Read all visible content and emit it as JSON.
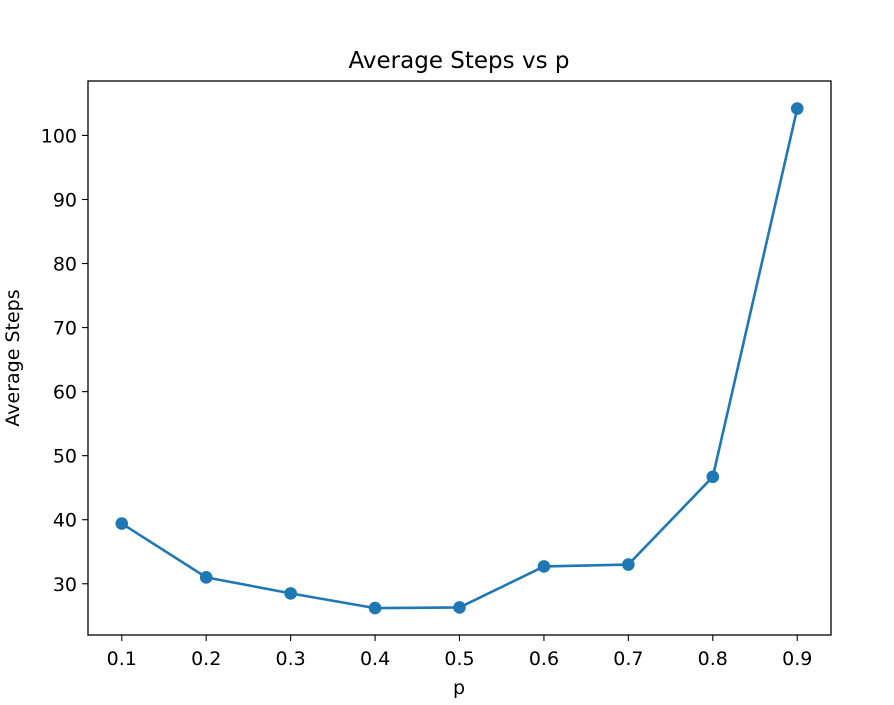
{
  "chart_data": {
    "type": "line",
    "title": "Average Steps vs p",
    "xlabel": "p",
    "ylabel": "Average Steps",
    "xlim": [
      0.06,
      0.94
    ],
    "ylim": [
      22.0,
      108.5
    ],
    "xticks": [
      0.1,
      0.2,
      0.3,
      0.4,
      0.5,
      0.6,
      0.7,
      0.8,
      0.9
    ],
    "xtick_labels": [
      "0.1",
      "0.2",
      "0.3",
      "0.4",
      "0.5",
      "0.6",
      "0.7",
      "0.8",
      "0.9"
    ],
    "yticks": [
      30,
      40,
      50,
      60,
      70,
      80,
      90,
      100
    ],
    "ytick_labels": [
      "30",
      "40",
      "50",
      "60",
      "70",
      "80",
      "90",
      "100"
    ],
    "grid": false,
    "series": [
      {
        "x": [
          0.1,
          0.2,
          0.3,
          0.4,
          0.5,
          0.6,
          0.7,
          0.8,
          0.9
        ],
        "y": [
          39.4,
          31.0,
          28.5,
          26.2,
          26.3,
          32.7,
          33.0,
          46.7,
          104.2
        ],
        "marker": "circle",
        "color": "#1f77b4"
      }
    ]
  }
}
